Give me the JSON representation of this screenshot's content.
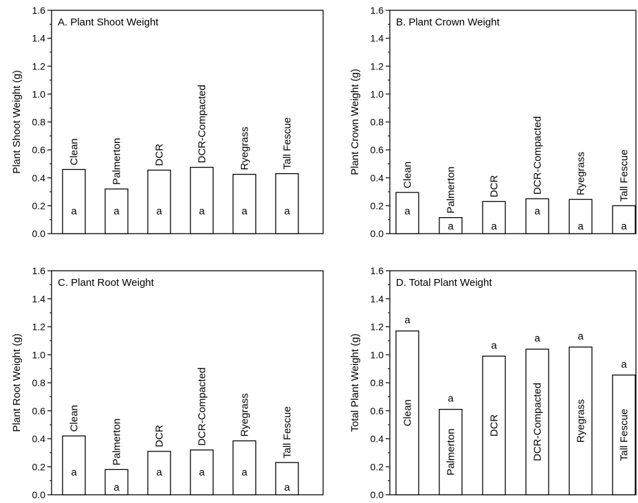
{
  "chart_data": [
    {
      "type": "bar",
      "title": "A. Plant Shoot Weight",
      "ylabel": "Plant Shoot Weight (g)",
      "xlabel": "",
      "ylim": [
        0,
        1.6
      ],
      "yticks": [
        "0.0",
        "0.2",
        "0.4",
        "0.6",
        "0.8",
        "1.0",
        "1.2",
        "1.4",
        "1.6"
      ],
      "categories": [
        "Clean",
        "Palmerton",
        "DCR",
        "DCR-Compacted",
        "Ryegrass",
        "Tall Fescue"
      ],
      "values": [
        0.46,
        0.32,
        0.455,
        0.475,
        0.425,
        0.43
      ],
      "significance": [
        "a",
        "a",
        "a",
        "a",
        "a",
        "a"
      ],
      "label_position": "above",
      "sig_position": "inside"
    },
    {
      "type": "bar",
      "title": "B. Plant Crown Weight",
      "ylabel": "Plant Crown Weight (g)",
      "xlabel": "",
      "ylim": [
        0,
        1.6
      ],
      "yticks": [
        "0.0",
        "0.2",
        "0.4",
        "0.6",
        "0.8",
        "1.0",
        "1.2",
        "1.4",
        "1.6"
      ],
      "categories": [
        "Clean",
        "Palmerton",
        "DCR",
        "DCR-Compacted",
        "Ryegrass",
        "Tall Fescue"
      ],
      "values": [
        0.295,
        0.115,
        0.23,
        0.25,
        0.245,
        0.2
      ],
      "significance": [
        "a",
        "a",
        "a",
        "a",
        "a",
        "a"
      ],
      "label_position": "above",
      "sig_position": "inside"
    },
    {
      "type": "bar",
      "title": "C.  Plant Root Weight",
      "ylabel": "Plant Root Weight (g)",
      "xlabel": "",
      "ylim": [
        0,
        1.6
      ],
      "yticks": [
        "0.0",
        "0.2",
        "0.4",
        "0.6",
        "0.8",
        "1.0",
        "1.2",
        "1.4",
        "1.6"
      ],
      "categories": [
        "Clean",
        "Palmerton",
        "DCR",
        "DCR-Compacted",
        "Ryegrass",
        "Tall Fescue"
      ],
      "values": [
        0.42,
        0.18,
        0.31,
        0.32,
        0.385,
        0.23
      ],
      "significance": [
        "a",
        "a",
        "a",
        "a",
        "a",
        "a"
      ],
      "label_position": "above",
      "sig_position": "inside"
    },
    {
      "type": "bar",
      "title": "D.  Total Plant Weight",
      "ylabel": "Total Plant Weight (g)",
      "xlabel": "",
      "ylim": [
        0,
        1.6
      ],
      "yticks": [
        "0.0",
        "0.2",
        "0.4",
        "0.6",
        "0.8",
        "1.0",
        "1.2",
        "1.4",
        "1.6"
      ],
      "categories": [
        "Clean",
        "Palmerton",
        "DCR",
        "DCR-Compacted",
        "Ryegrass",
        "Tall Fescue"
      ],
      "values": [
        1.17,
        0.61,
        0.99,
        1.04,
        1.055,
        0.855
      ],
      "significance": [
        "a",
        "a",
        "a",
        "a",
        "a",
        "a"
      ],
      "label_position": "inside",
      "sig_position": "above"
    }
  ]
}
